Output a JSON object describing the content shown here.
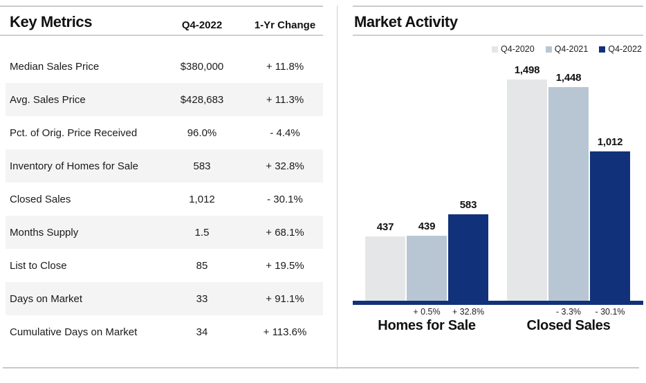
{
  "key_metrics": {
    "title": "Key Metrics",
    "columns": [
      "Q4-2022",
      "1-Yr Change"
    ],
    "rows": [
      {
        "label": "Median Sales Price",
        "value": "$380,000",
        "change": "+ 11.8%"
      },
      {
        "label": "Avg. Sales Price",
        "value": "$428,683",
        "change": "+ 11.3%"
      },
      {
        "label": "Pct. of Orig. Price Received",
        "value": "96.0%",
        "change": "- 4.4%"
      },
      {
        "label": "Inventory of Homes for Sale",
        "value": "583",
        "change": "+ 32.8%"
      },
      {
        "label": "Closed Sales",
        "value": "1,012",
        "change": "- 30.1%"
      },
      {
        "label": "Months Supply",
        "value": "1.5",
        "change": "+ 68.1%"
      },
      {
        "label": "List to Close",
        "value": "85",
        "change": "+ 19.5%"
      },
      {
        "label": "Days on Market",
        "value": "33",
        "change": "+ 91.1%"
      },
      {
        "label": "Cumulative Days on Market",
        "value": "34",
        "change": "+ 113.6%"
      }
    ]
  },
  "market_activity": {
    "title": "Market Activity"
  },
  "chart_data": {
    "type": "bar",
    "title": "Market Activity",
    "categories": [
      "Homes for Sale",
      "Closed Sales"
    ],
    "series": [
      {
        "name": "Q4-2020",
        "color": "#e4e6e8",
        "values": [
          437,
          1498
        ],
        "labels": [
          "437",
          "1,498"
        ]
      },
      {
        "name": "Q4-2021",
        "color": "#b8c6d3",
        "values": [
          439,
          1448
        ],
        "labels": [
          "439",
          "1,448"
        ]
      },
      {
        "name": "Q4-2022",
        "color": "#11327a",
        "values": [
          583,
          1012
        ],
        "labels": [
          "583",
          "1,012"
        ]
      }
    ],
    "pct_change_labels": [
      [
        "",
        "+ 0.5%",
        "+ 32.8%"
      ],
      [
        "",
        "- 3.3%",
        "- 30.1%"
      ]
    ],
    "xlabel": "",
    "ylabel": "",
    "ylim": [
      0,
      1500
    ],
    "grid": false,
    "legend_position": "top-right"
  },
  "colors": {
    "baseline_navy": "#11327a",
    "row_stripe": "#f4f4f4",
    "rule_gray": "#c9c9c9",
    "text": "#1a1a1a"
  }
}
